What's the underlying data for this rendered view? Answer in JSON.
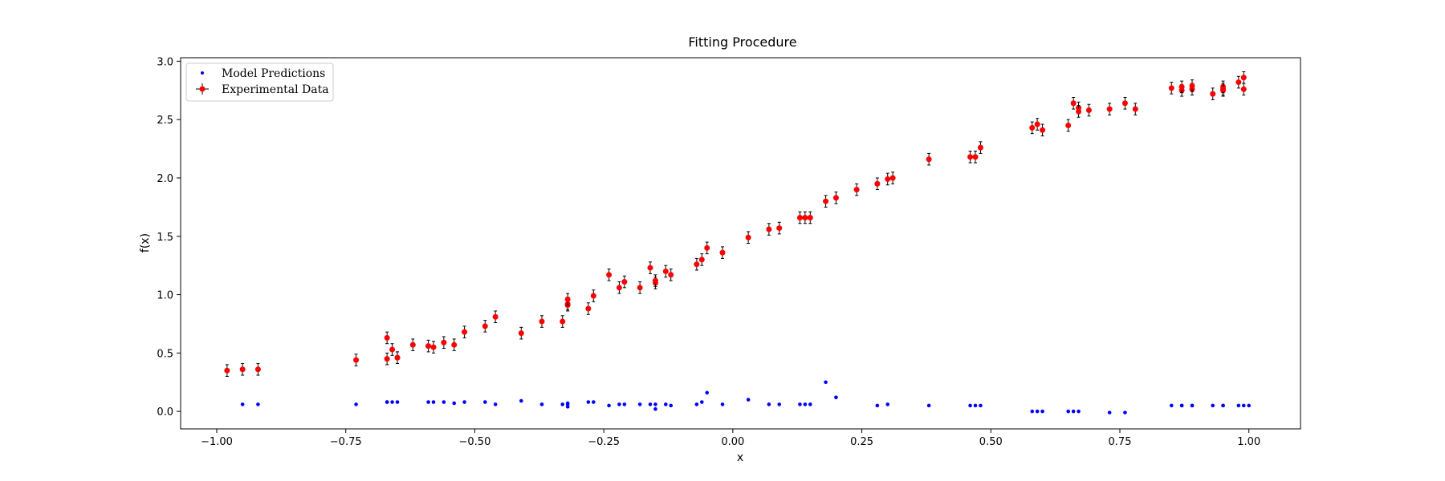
{
  "chart_data": {
    "type": "scatter",
    "title": "Fitting Procedure",
    "xlabel": "x",
    "ylabel": "f(x)",
    "xlim": [
      -1.07,
      1.1
    ],
    "ylim": [
      -0.15,
      3.03
    ],
    "xticks": [
      -1.0,
      -0.75,
      -0.5,
      -0.25,
      0.0,
      0.25,
      0.5,
      0.75,
      1.0
    ],
    "xtick_labels": [
      "−1.00",
      "−0.75",
      "−0.50",
      "−0.25",
      "0.00",
      "0.25",
      "0.50",
      "0.75",
      "1.00"
    ],
    "yticks": [
      0.0,
      0.5,
      1.0,
      1.5,
      2.0,
      2.5,
      3.0
    ],
    "ytick_labels": [
      "0.0",
      "0.5",
      "1.0",
      "1.5",
      "2.0",
      "2.5",
      "3.0"
    ],
    "legend": {
      "placement": "top-left",
      "entries": [
        "Model Predictions",
        "Experimental Data"
      ]
    },
    "grid": false,
    "colors": {
      "model": "#0000ff",
      "experimental": "#ff0000",
      "errorbar": "#000000"
    },
    "error_bar": 0.05,
    "series": [
      {
        "name": "Experimental Data",
        "x": [
          -0.98,
          -0.95,
          -0.92,
          -0.73,
          -0.67,
          -0.67,
          -0.66,
          -0.65,
          -0.65,
          -0.62,
          -0.59,
          -0.58,
          -0.56,
          -0.54,
          -0.52,
          -0.48,
          -0.46,
          -0.41,
          -0.37,
          -0.33,
          -0.32,
          -0.32,
          -0.32,
          -0.28,
          -0.27,
          -0.24,
          -0.22,
          -0.21,
          -0.18,
          -0.16,
          -0.15,
          -0.15,
          -0.13,
          -0.12,
          -0.07,
          -0.06,
          -0.05,
          -0.02,
          0.03,
          0.07,
          0.09,
          0.13,
          0.14,
          0.15,
          0.18,
          0.2,
          0.24,
          0.28,
          0.3,
          0.31,
          0.38,
          0.46,
          0.47,
          0.48,
          0.58,
          0.59,
          0.6,
          0.65,
          0.66,
          0.67,
          0.67,
          0.69,
          0.73,
          0.76,
          0.78,
          0.85,
          0.87,
          0.87,
          0.89,
          0.89,
          0.93,
          0.95,
          0.95,
          0.95,
          0.98,
          0.99,
          0.99
        ],
        "y": [
          0.35,
          0.36,
          0.36,
          0.44,
          0.45,
          0.63,
          0.53,
          0.46,
          0.46,
          0.57,
          0.56,
          0.55,
          0.59,
          0.57,
          0.68,
          0.73,
          0.81,
          0.67,
          0.77,
          0.77,
          0.92,
          0.91,
          0.96,
          0.88,
          0.99,
          1.17,
          1.06,
          1.11,
          1.06,
          1.23,
          1.1,
          1.12,
          1.2,
          1.17,
          1.26,
          1.3,
          1.4,
          1.36,
          1.49,
          1.56,
          1.57,
          1.66,
          1.66,
          1.66,
          1.8,
          1.83,
          1.9,
          1.95,
          1.99,
          2.0,
          2.16,
          2.18,
          2.18,
          2.26,
          2.43,
          2.46,
          2.41,
          2.45,
          2.64,
          2.6,
          2.57,
          2.58,
          2.59,
          2.64,
          2.59,
          2.77,
          2.75,
          2.78,
          2.76,
          2.79,
          2.72,
          2.75,
          2.78,
          2.76,
          2.82,
          2.86,
          2.76
        ]
      },
      {
        "name": "Model Predictions",
        "x": [
          -0.95,
          -0.92,
          -0.73,
          -0.67,
          -0.67,
          -0.66,
          -0.65,
          -0.59,
          -0.58,
          -0.56,
          -0.54,
          -0.52,
          -0.48,
          -0.46,
          -0.41,
          -0.37,
          -0.33,
          -0.32,
          -0.32,
          -0.32,
          -0.28,
          -0.27,
          -0.24,
          -0.22,
          -0.21,
          -0.18,
          -0.16,
          -0.15,
          -0.15,
          -0.13,
          -0.12,
          -0.07,
          -0.06,
          -0.05,
          -0.02,
          0.03,
          0.07,
          0.09,
          0.13,
          0.14,
          0.15,
          0.18,
          0.2,
          0.28,
          0.3,
          0.38,
          0.46,
          0.47,
          0.48,
          0.58,
          0.59,
          0.6,
          0.65,
          0.66,
          0.67,
          0.73,
          0.76,
          0.85,
          0.87,
          0.87,
          0.89,
          0.89,
          0.93,
          0.95,
          0.95,
          0.98,
          0.99,
          1.0
        ],
        "y": [
          0.06,
          0.06,
          0.06,
          0.08,
          0.08,
          0.08,
          0.08,
          0.08,
          0.08,
          0.08,
          0.07,
          0.08,
          0.08,
          0.06,
          0.09,
          0.06,
          0.06,
          0.06,
          0.04,
          0.07,
          0.08,
          0.08,
          0.05,
          0.06,
          0.06,
          0.06,
          0.06,
          0.02,
          0.06,
          0.06,
          0.05,
          0.06,
          0.08,
          0.16,
          0.06,
          0.1,
          0.06,
          0.06,
          0.06,
          0.06,
          0.06,
          0.25,
          0.12,
          0.05,
          0.06,
          0.05,
          0.05,
          0.05,
          0.05,
          0.0,
          0.0,
          0.0,
          0.0,
          0.0,
          0.0,
          -0.01,
          -0.01,
          0.05,
          0.05,
          0.05,
          0.05,
          0.05,
          0.05,
          0.05,
          0.05,
          0.05,
          0.05,
          0.05
        ]
      }
    ]
  }
}
